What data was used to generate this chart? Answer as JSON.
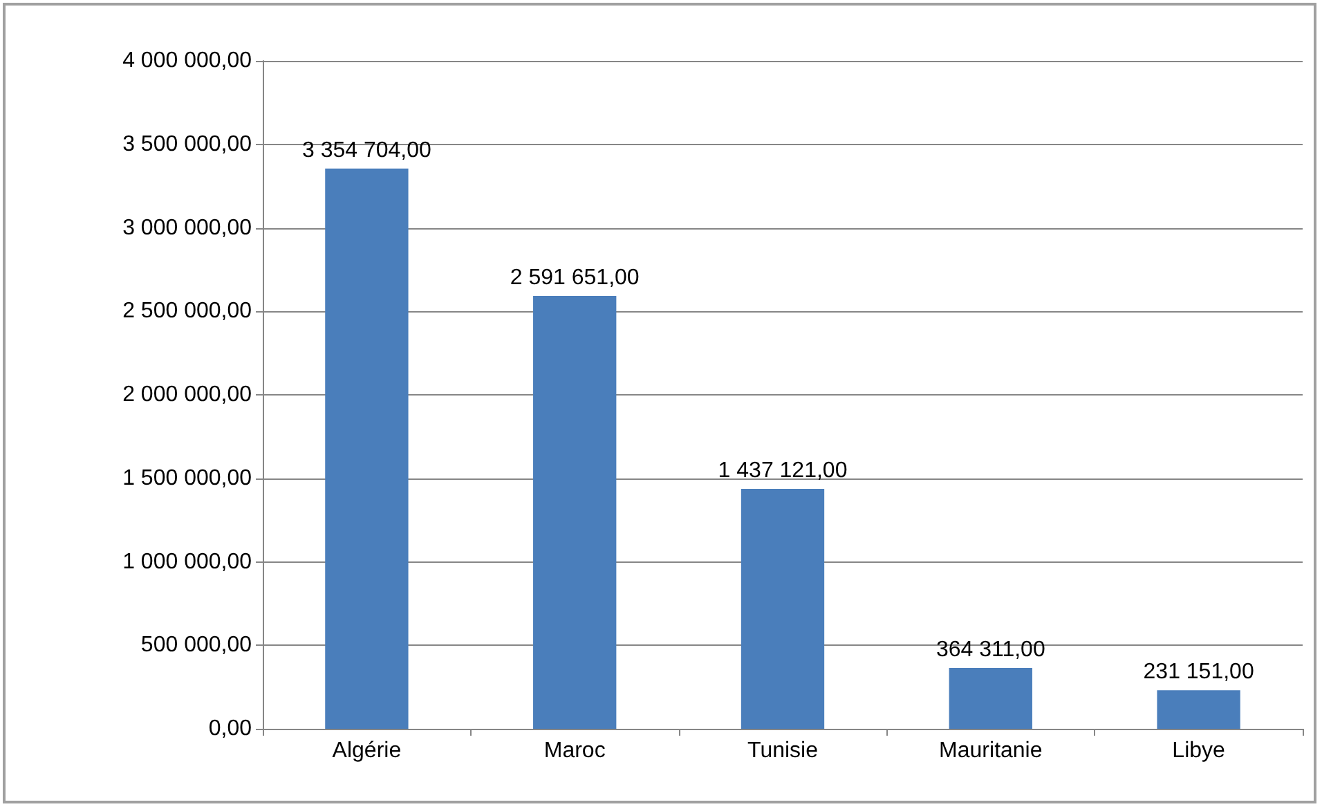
{
  "chart_data": {
    "type": "bar",
    "categories": [
      "Algérie",
      "Maroc",
      "Tunisie",
      "Mauritanie",
      "Libye"
    ],
    "values": [
      3354704,
      2591651,
      1437121,
      364311,
      231151
    ],
    "value_labels": [
      "3 354 704,00",
      "2 591 651,00",
      "1 437 121,00",
      "364 311,00",
      "231 151,00"
    ],
    "color": "#4a7ebb",
    "ylim": [
      0,
      4000000
    ],
    "yticks": [
      {
        "value": 0,
        "label": "0,00"
      },
      {
        "value": 500000,
        "label": "500 000,00"
      },
      {
        "value": 1000000,
        "label": "1 000 000,00"
      },
      {
        "value": 1500000,
        "label": "1 500 000,00"
      },
      {
        "value": 2000000,
        "label": "2 000 000,00"
      },
      {
        "value": 2500000,
        "label": "2 500 000,00"
      },
      {
        "value": 3000000,
        "label": "3 000 000,00"
      },
      {
        "value": 3500000,
        "label": "3 500 000,00"
      },
      {
        "value": 4000000,
        "label": "4 000 000,00"
      }
    ],
    "grid": "y"
  }
}
